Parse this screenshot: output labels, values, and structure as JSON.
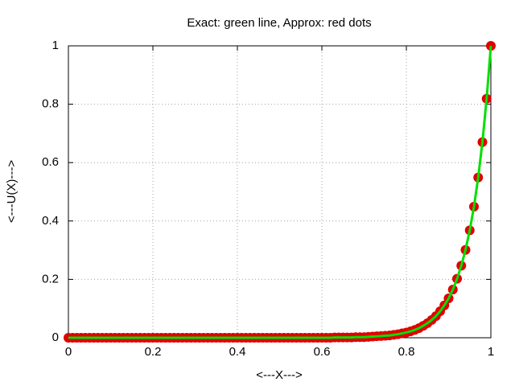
{
  "chart_data": {
    "type": "scatter-line",
    "title": "Exact: green line, Approx: red dots",
    "x_label": "<---X--->",
    "y_label": "<---U(X)--->",
    "x": [
      0,
      0.01,
      0.02,
      0.03,
      0.04,
      0.05,
      0.06,
      0.07,
      0.08,
      0.09,
      0.1,
      0.11,
      0.12,
      0.13,
      0.14,
      0.15,
      0.16,
      0.17,
      0.18,
      0.19,
      0.2,
      0.21,
      0.22,
      0.23,
      0.24,
      0.25,
      0.26,
      0.27,
      0.28,
      0.29,
      0.3,
      0.31,
      0.32,
      0.33,
      0.34,
      0.35,
      0.36,
      0.37,
      0.38,
      0.39,
      0.4,
      0.41,
      0.42,
      0.43,
      0.44,
      0.45,
      0.46,
      0.47,
      0.48,
      0.49,
      0.5,
      0.51,
      0.52,
      0.53,
      0.54,
      0.55,
      0.56,
      0.57,
      0.58,
      0.59,
      0.6,
      0.61,
      0.62,
      0.63,
      0.64,
      0.65,
      0.66,
      0.67,
      0.68,
      0.69,
      0.7,
      0.71,
      0.72,
      0.73,
      0.74,
      0.75,
      0.76,
      0.77,
      0.78,
      0.79,
      0.8,
      0.81,
      0.82,
      0.83,
      0.84,
      0.85,
      0.86,
      0.87,
      0.88,
      0.89,
      0.9,
      0.91,
      0.92,
      0.93,
      0.94,
      0.95,
      0.96,
      0.97,
      0.98,
      0.99,
      1
    ],
    "series": [
      {
        "color": "#e00000",
        "values": [
          0,
          0,
          0,
          0,
          0,
          0,
          0,
          0,
          0,
          0,
          0,
          0,
          0,
          0,
          0,
          0,
          0,
          0,
          0,
          0,
          0,
          0,
          0,
          0,
          0,
          0,
          0,
          0,
          0,
          0,
          0,
          0,
          0,
          0,
          0,
          0,
          0,
          0,
          0,
          0,
          0,
          0,
          0,
          0,
          0,
          0,
          0,
          0,
          0,
          0,
          0,
          0,
          0,
          0,
          0,
          0,
          0,
          0,
          0,
          0,
          0,
          0,
          0,
          0.001,
          0.001,
          0.001,
          0.001,
          0.001,
          0.002,
          0.002,
          0.002,
          0.003,
          0.004,
          0.005,
          0.006,
          0.007,
          0.008,
          0.01,
          0.012,
          0.015,
          0.018,
          0.022,
          0.027,
          0.033,
          0.041,
          0.05,
          0.061,
          0.074,
          0.091,
          0.111,
          0.135,
          0.165,
          0.202,
          0.247,
          0.301,
          0.368,
          0.449,
          0.549,
          0.67,
          0.819,
          1
        ]
      },
      {
        "color": "#00e000",
        "values": [
          0,
          0,
          0,
          0,
          0,
          0,
          0,
          0,
          0,
          0,
          0,
          0,
          0,
          0,
          0,
          0,
          0,
          0,
          0,
          0,
          0,
          0,
          0,
          0,
          0,
          0,
          0,
          0,
          0,
          0,
          0,
          0,
          0,
          0,
          0,
          0,
          0,
          0,
          0,
          0,
          0,
          0,
          0,
          0,
          0,
          0,
          0,
          0,
          0,
          0,
          0,
          0,
          0,
          0,
          0,
          0,
          0,
          0,
          0,
          0,
          0,
          0,
          0,
          0.001,
          0.001,
          0.001,
          0.001,
          0.001,
          0.002,
          0.002,
          0.002,
          0.003,
          0.004,
          0.005,
          0.006,
          0.007,
          0.008,
          0.01,
          0.012,
          0.015,
          0.018,
          0.022,
          0.027,
          0.033,
          0.041,
          0.05,
          0.061,
          0.074,
          0.091,
          0.111,
          0.135,
          0.165,
          0.202,
          0.247,
          0.301,
          0.368,
          0.449,
          0.549,
          0.67,
          0.819,
          1
        ]
      }
    ],
    "xlim": [
      0,
      1
    ],
    "ylim": [
      0,
      1
    ],
    "xticks": [
      0,
      0.2,
      0.4,
      0.6,
      0.8,
      1
    ],
    "yticks": [
      0,
      0.2,
      0.4,
      0.6,
      0.8,
      1
    ],
    "grid": true
  }
}
